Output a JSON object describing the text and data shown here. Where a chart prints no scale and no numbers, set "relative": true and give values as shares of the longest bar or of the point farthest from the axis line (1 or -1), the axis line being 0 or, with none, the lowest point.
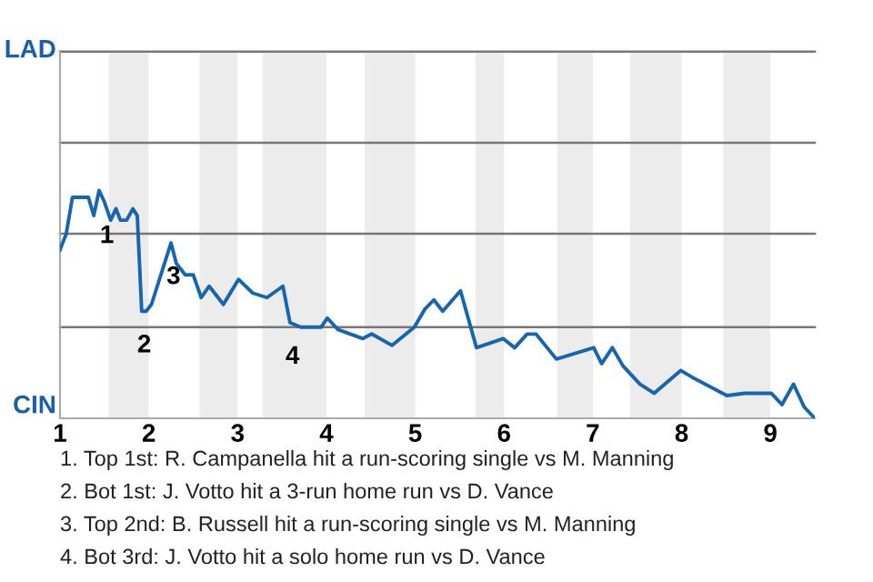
{
  "chart_data": {
    "type": "line",
    "relative": true,
    "x": [
      1.0,
      1.07,
      1.14,
      1.32,
      1.38,
      1.44,
      1.5,
      1.57,
      1.63,
      1.68,
      1.75,
      1.82,
      1.87,
      1.92,
      1.97,
      2.03,
      2.25,
      2.31,
      2.41,
      2.5,
      2.59,
      2.68,
      2.84,
      3.01,
      3.17,
      3.33,
      3.51,
      3.59,
      3.71,
      3.94,
      4.01,
      4.13,
      4.41,
      4.51,
      4.74,
      4.99,
      5.11,
      5.21,
      5.31,
      5.51,
      5.69,
      5.99,
      6.12,
      6.26,
      6.36,
      6.59,
      7.01,
      7.1,
      7.22,
      7.34,
      7.53,
      7.69,
      7.99,
      8.12,
      8.51,
      8.71,
      9.01,
      9.13,
      9.26,
      9.38,
      9.5
    ],
    "series": [
      {
        "color": "#1565b0",
        "values": [
          0.74,
          0.81,
          0.97,
          0.97,
          0.89,
          1,
          0.95,
          0.87,
          0.92,
          0.87,
          0.87,
          0.92,
          0.89,
          0.47,
          0.47,
          0.5,
          0.77,
          0.68,
          0.63,
          0.63,
          0.53,
          0.58,
          0.5,
          0.61,
          0.55,
          0.53,
          0.58,
          0.42,
          0.4,
          0.4,
          0.44,
          0.39,
          0.35,
          0.37,
          0.32,
          0.4,
          0.48,
          0.52,
          0.47,
          0.56,
          0.31,
          0.35,
          0.31,
          0.37,
          0.37,
          0.26,
          0.31,
          0.24,
          0.31,
          0.23,
          0.15,
          0.11,
          0.21,
          0.18,
          0.1,
          0.11,
          0.11,
          0.06,
          0.15,
          0.05,
          0
        ]
      }
    ],
    "xlim": [
      1,
      9.5
    ],
    "xticks": [
      1,
      2,
      3,
      4,
      5,
      6,
      7,
      8,
      9
    ],
    "ref_lines": [
      {
        "axis": "y",
        "value": 0.4,
        "color": "#777777"
      },
      {
        "axis": "y",
        "value": 0.81,
        "color": "#777777"
      },
      {
        "axis": "y",
        "value": 1.21,
        "color": "#777777"
      },
      {
        "axis": "y",
        "value": 1.61,
        "color": "#777777"
      }
    ],
    "bands": [
      {
        "axis": "x",
        "from": 1.55,
        "to": 2,
        "color": "#ececec"
      },
      {
        "axis": "x",
        "from": 2.57,
        "to": 3,
        "color": "#ececec"
      },
      {
        "axis": "x",
        "from": 3.28,
        "to": 4,
        "color": "#ececec"
      },
      {
        "axis": "x",
        "from": 4.43,
        "to": 5,
        "color": "#ececec"
      },
      {
        "axis": "x",
        "from": 5.68,
        "to": 6,
        "color": "#ececec"
      },
      {
        "axis": "x",
        "from": 6.6,
        "to": 7,
        "color": "#ececec"
      },
      {
        "axis": "x",
        "from": 7.42,
        "to": 8,
        "color": "#ececec"
      },
      {
        "axis": "x",
        "from": 8.47,
        "to": 9,
        "color": "#ececec"
      }
    ],
    "annotations": [
      "LAD",
      "CIN",
      {
        "text": "1",
        "x": 1.5,
        "y": 0.95
      },
      {
        "text": "2",
        "x": 1.92,
        "y": 0.47
      },
      {
        "text": "3",
        "x": 2.25,
        "y": 0.77
      },
      {
        "text": "4",
        "x": 3.59,
        "y": 0.42
      },
      "1. Top 1st: R. Campanella hit a run-scoring single vs M. Manning",
      "2. Bot 1st: J. Votto hit a 3-run home run vs D. Vance",
      "3. Top 2nd: B. Russell hit a run-scoring single vs M. Manning",
      "4. Bot 3rd: J. Votto hit a solo home run vs D. Vance"
    ]
  }
}
